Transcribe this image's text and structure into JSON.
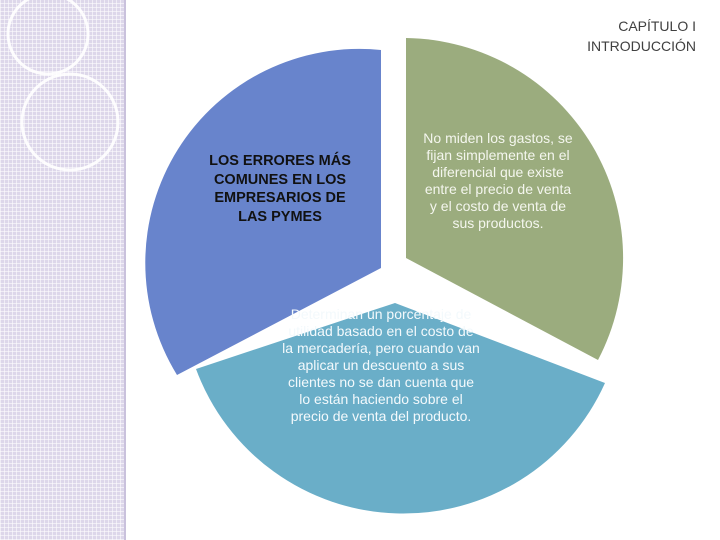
{
  "header": {
    "chapter": "CAPÍTULO I",
    "section": "INTRODUCCIÓN"
  },
  "diagram": {
    "title_segment": "LOS ERRORES MÁS COMUNES EN LOS EMPRESARIOS DE LAS PYMES",
    "segments": [
      {
        "text": "No miden los gastos, se fijan simplemente en el diferencial que existe entre el precio de venta y el costo de venta de sus productos.",
        "color": "#9bac7e"
      },
      {
        "text": "Determinan un porcentaje de utilidad basado en el costo de la mercadería, pero cuando van aplicar un descuento a sus clientes no se dan cuenta que lo están haciendo sobre el precio de venta del producto.",
        "color": "#6aaec8"
      },
      {
        "text": "",
        "color": "#6884cc"
      }
    ]
  },
  "colors": {
    "band": "#ddd7ea",
    "ring": "#ffffff"
  }
}
